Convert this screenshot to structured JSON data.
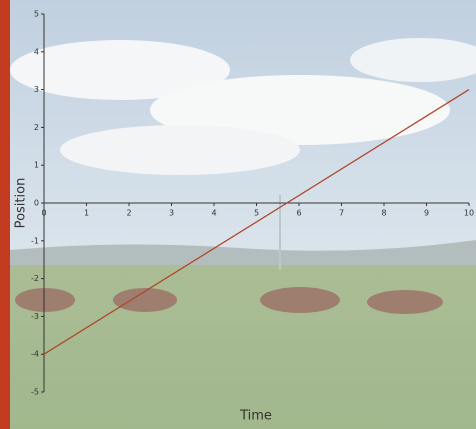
{
  "chart_data": {
    "type": "line",
    "x_label": "Time",
    "y_label": "Position",
    "x": [
      0,
      10
    ],
    "values": [
      -4,
      3
    ],
    "color": "#b0472a",
    "xlim": [
      0,
      10
    ],
    "ylim": [
      -5,
      5
    ],
    "xticks": [
      0,
      1,
      2,
      3,
      4,
      5,
      6,
      7,
      8,
      9,
      10
    ],
    "yticks": [
      -5,
      -4,
      -3,
      -2,
      -1,
      0,
      1,
      2,
      3,
      4,
      5
    ],
    "grid": false
  }
}
